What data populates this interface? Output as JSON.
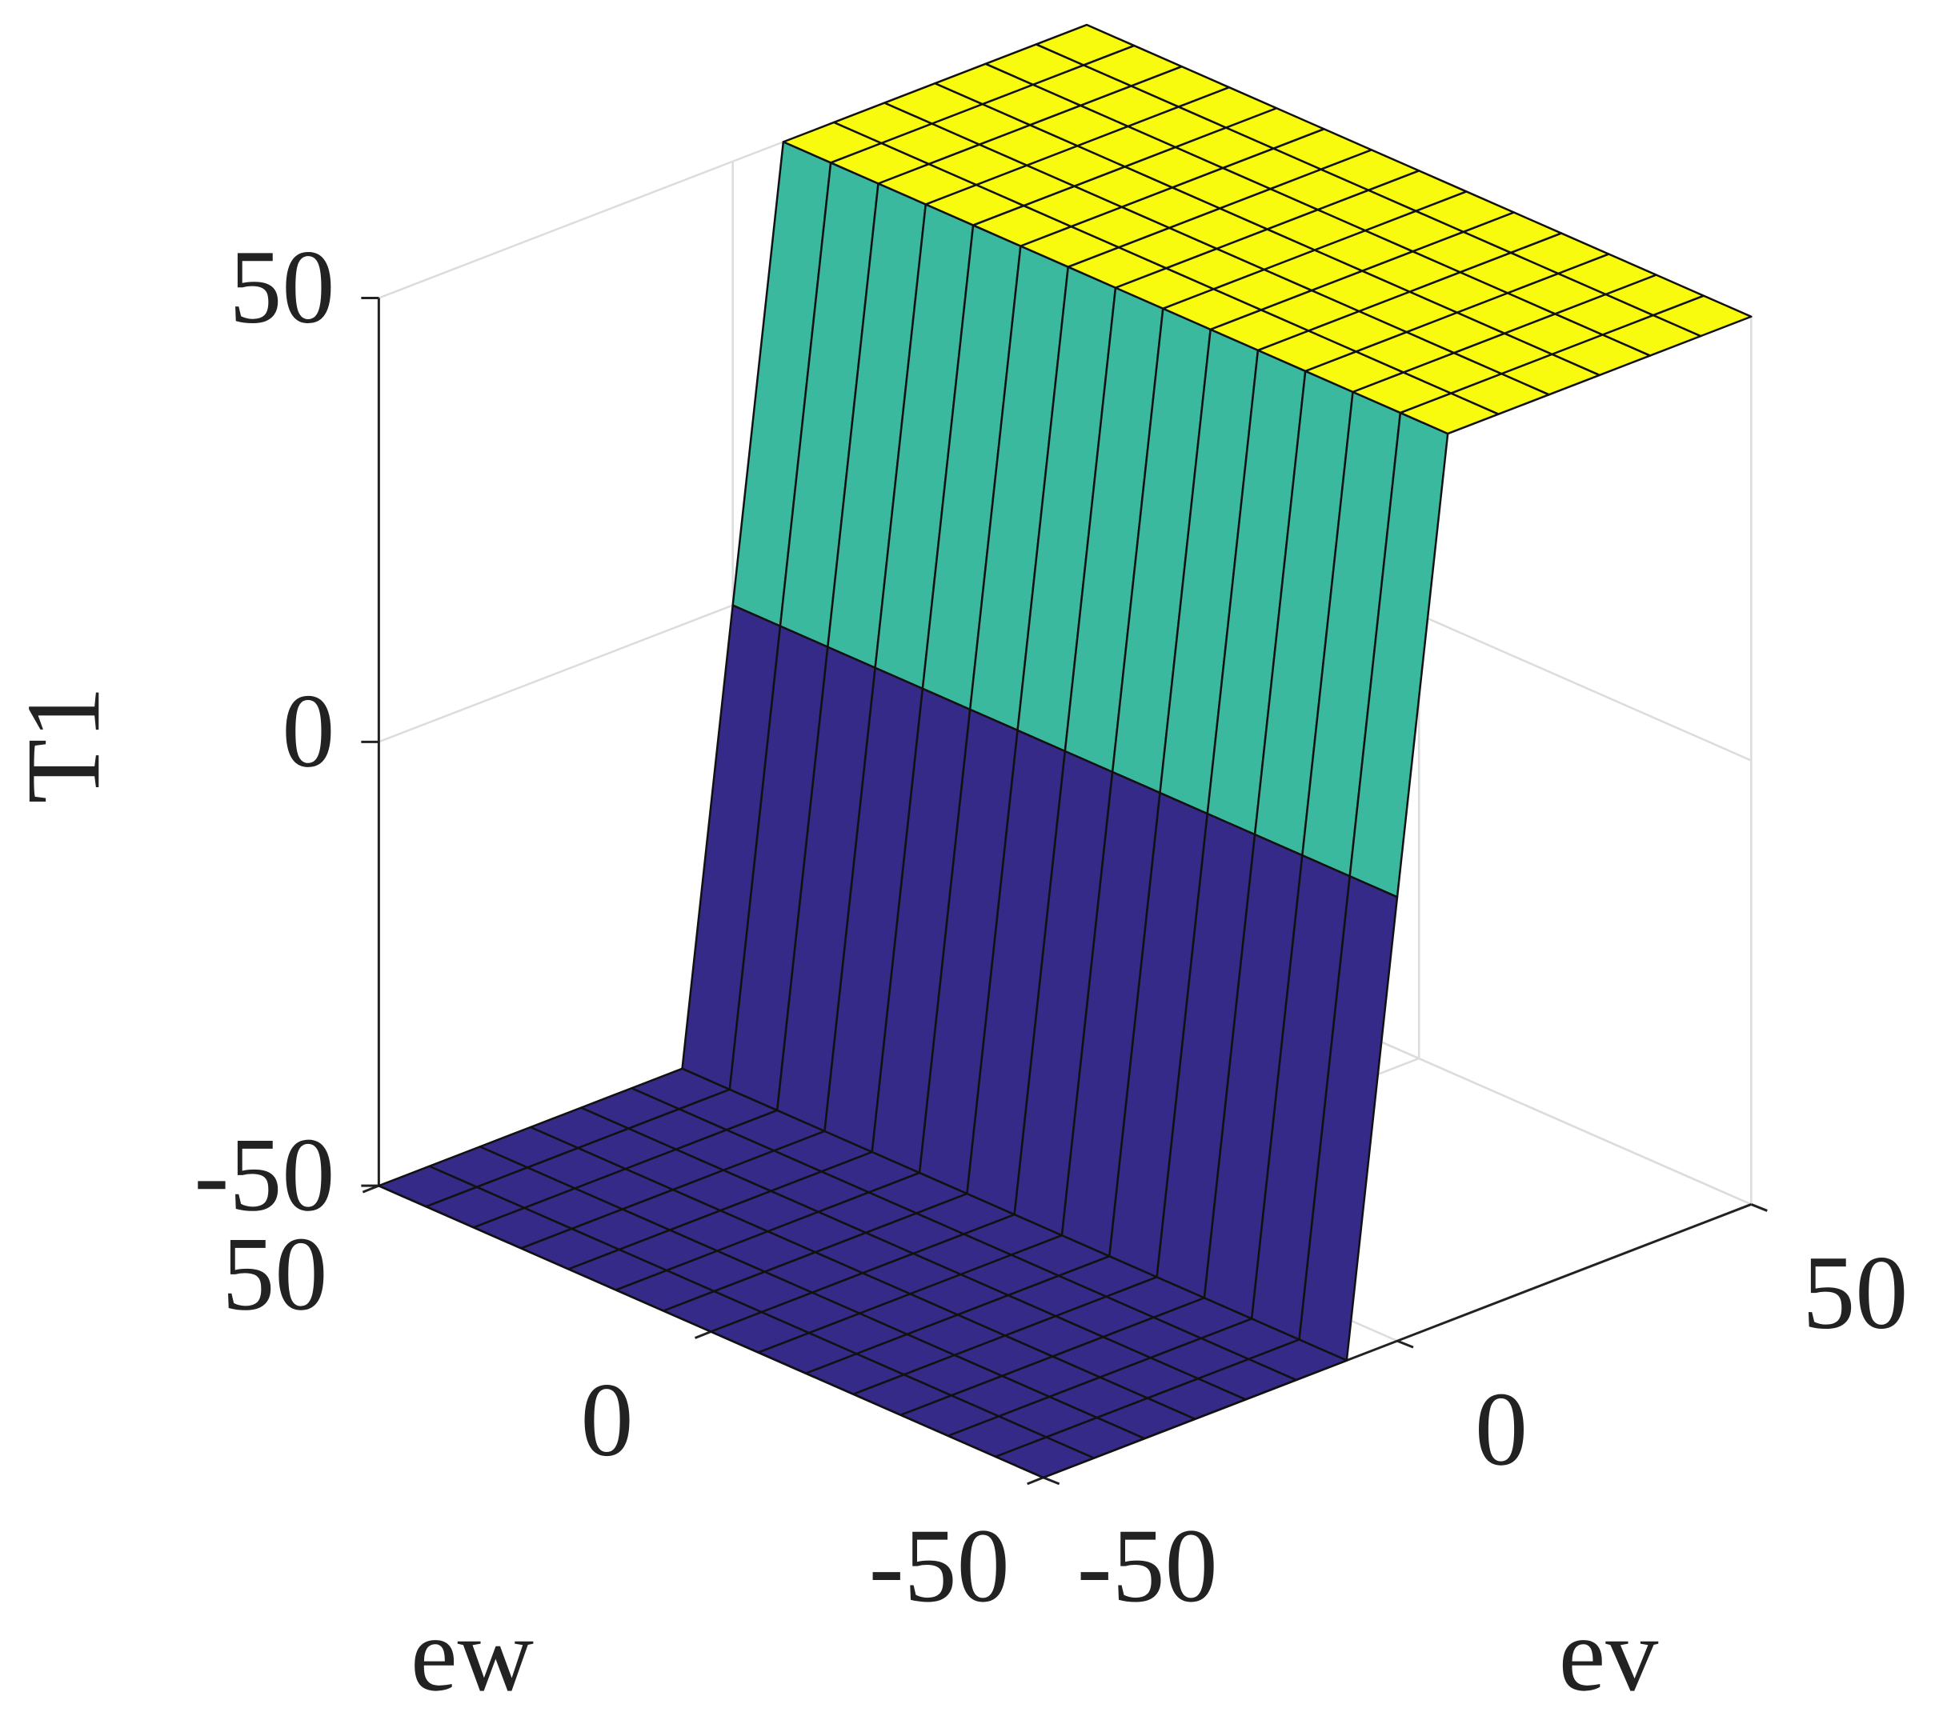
{
  "chart_data": {
    "type": "surface",
    "xlabel": "ev",
    "ylabel": "ew",
    "zlabel": "T1",
    "x": [
      -50,
      -42.86,
      -35.71,
      -28.57,
      -21.43,
      -14.29,
      -7.14,
      0,
      7.14,
      14.29,
      21.43,
      28.57,
      35.71,
      42.86,
      50
    ],
    "y": [
      -50,
      -42.86,
      -35.71,
      -28.57,
      -21.43,
      -14.29,
      -7.14,
      0,
      7.14,
      14.29,
      21.43,
      28.57,
      35.71,
      42.86,
      50
    ],
    "z": [
      [
        -50,
        -50,
        -50,
        -50,
        -50,
        -50,
        -50,
        0,
        50,
        50,
        50,
        50,
        50,
        50,
        50
      ],
      [
        -50,
        -50,
        -50,
        -50,
        -50,
        -50,
        -50,
        0,
        50,
        50,
        50,
        50,
        50,
        50,
        50
      ],
      [
        -50,
        -50,
        -50,
        -50,
        -50,
        -50,
        -50,
        0,
        50,
        50,
        50,
        50,
        50,
        50,
        50
      ],
      [
        -50,
        -50,
        -50,
        -50,
        -50,
        -50,
        -50,
        0,
        50,
        50,
        50,
        50,
        50,
        50,
        50
      ],
      [
        -50,
        -50,
        -50,
        -50,
        -50,
        -50,
        -50,
        0,
        50,
        50,
        50,
        50,
        50,
        50,
        50
      ],
      [
        -50,
        -50,
        -50,
        -50,
        -50,
        -50,
        -50,
        0,
        50,
        50,
        50,
        50,
        50,
        50,
        50
      ],
      [
        -50,
        -50,
        -50,
        -50,
        -50,
        -50,
        -50,
        0,
        50,
        50,
        50,
        50,
        50,
        50,
        50
      ],
      [
        -50,
        -50,
        -50,
        -50,
        -50,
        -50,
        -50,
        0,
        50,
        50,
        50,
        50,
        50,
        50,
        50
      ],
      [
        -50,
        -50,
        -50,
        -50,
        -50,
        -50,
        -50,
        0,
        50,
        50,
        50,
        50,
        50,
        50,
        50
      ],
      [
        -50,
        -50,
        -50,
        -50,
        -50,
        -50,
        -50,
        0,
        50,
        50,
        50,
        50,
        50,
        50,
        50
      ],
      [
        -50,
        -50,
        -50,
        -50,
        -50,
        -50,
        -50,
        0,
        50,
        50,
        50,
        50,
        50,
        50,
        50
      ],
      [
        -50,
        -50,
        -50,
        -50,
        -50,
        -50,
        -50,
        0,
        50,
        50,
        50,
        50,
        50,
        50,
        50
      ],
      [
        -50,
        -50,
        -50,
        -50,
        -50,
        -50,
        -50,
        0,
        50,
        50,
        50,
        50,
        50,
        50,
        50
      ],
      [
        -50,
        -50,
        -50,
        -50,
        -50,
        -50,
        -50,
        0,
        50,
        50,
        50,
        50,
        50,
        50,
        50
      ],
      [
        -50,
        -50,
        -50,
        -50,
        -50,
        -50,
        -50,
        0,
        50,
        50,
        50,
        50,
        50,
        50,
        50
      ]
    ],
    "xlim": [
      -50,
      50
    ],
    "ylim": [
      -50,
      50
    ],
    "zlim": [
      -50,
      50
    ],
    "xticks": [
      -50,
      0,
      50
    ],
    "yticks": [
      -50,
      0,
      50
    ],
    "zticks": [
      -50,
      0,
      50
    ],
    "grid": true,
    "colormap": [
      "#352a87",
      "#3bb99f",
      "#f9fb0e"
    ]
  }
}
